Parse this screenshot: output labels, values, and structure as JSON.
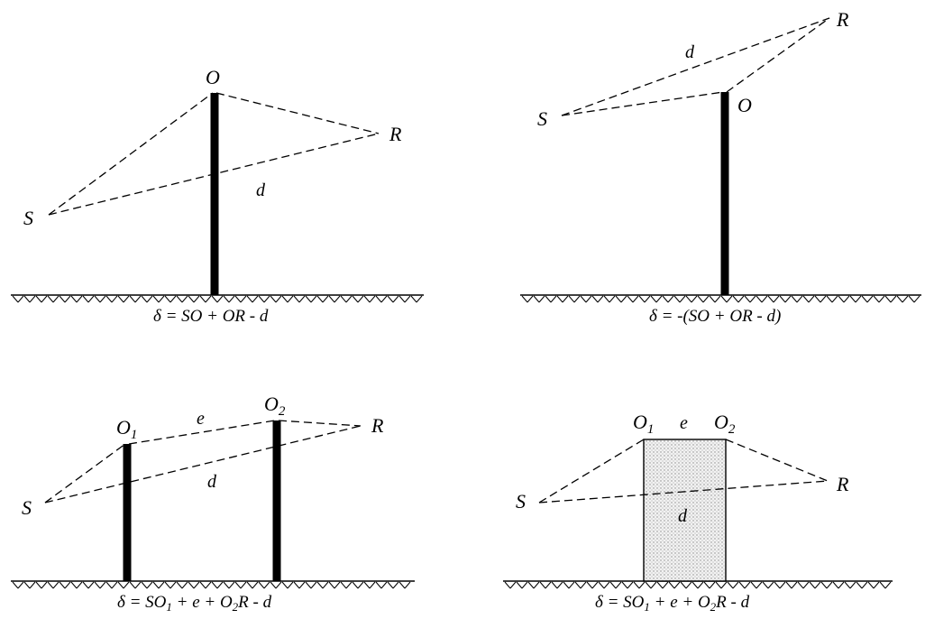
{
  "panels": [
    {
      "labels": {
        "S": "S",
        "O": "O",
        "R": "R",
        "d": "d"
      },
      "formula": "δ = SO + OR - d"
    },
    {
      "labels": {
        "S": "S",
        "O": "O",
        "R": "R",
        "d": "d"
      },
      "formula": "δ = -(SO + OR - d)"
    },
    {
      "labels": {
        "S": "S",
        "O1": "O",
        "O1_sub": "1",
        "O2": "O",
        "O2_sub": "2",
        "R": "R",
        "e": "e",
        "d": "d"
      },
      "formula_parts": [
        "δ = SO",
        "1",
        " + e + O",
        "2",
        "R - d"
      ]
    },
    {
      "labels": {
        "S": "S",
        "O1": "O",
        "O1_sub": "1",
        "O2": "O",
        "O2_sub": "2",
        "R": "R",
        "e": "e",
        "d": "d"
      },
      "formula_parts": [
        "δ = SO",
        "1",
        " + e + O",
        "2",
        "R - d"
      ]
    }
  ]
}
